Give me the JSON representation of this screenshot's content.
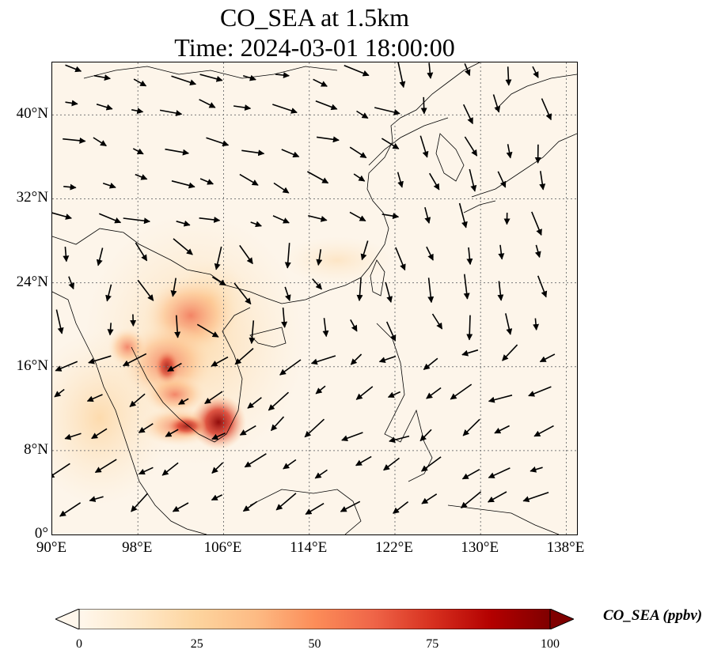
{
  "title": {
    "line1": "CO_SEA at 1.5km",
    "line2": "Time: 2024-03-01 18:00:00"
  },
  "map": {
    "projection": "PlateCarree",
    "lon_range": [
      90,
      139
    ],
    "lat_range": [
      0,
      45
    ],
    "gridlines": "dotted",
    "lat_ticks": [
      {
        "value": 0,
        "label": "0°"
      },
      {
        "value": 8,
        "label": "8°N"
      },
      {
        "value": 16,
        "label": "16°N"
      },
      {
        "value": 24,
        "label": "24°N"
      },
      {
        "value": 32,
        "label": "32°N"
      },
      {
        "value": 40,
        "label": "40°N"
      }
    ],
    "lon_ticks": [
      {
        "value": 90,
        "label": "90°E"
      },
      {
        "value": 98,
        "label": "98°E"
      },
      {
        "value": 106,
        "label": "106°E"
      },
      {
        "value": 114,
        "label": "114°E"
      },
      {
        "value": 122,
        "label": "122°E"
      },
      {
        "value": 130,
        "label": "130°E"
      },
      {
        "value": 138,
        "label": "138°E"
      }
    ],
    "field": "CO_SEA",
    "wind_vectors": "shown"
  },
  "colorbar": {
    "label": "CO_SEA (ppbv)",
    "cmap": "OrRd",
    "min": 0,
    "max": 100,
    "extend": "both",
    "ticks": [
      {
        "value": 0,
        "label": "0"
      },
      {
        "value": 25,
        "label": "25"
      },
      {
        "value": 50,
        "label": "50"
      },
      {
        "value": 75,
        "label": "75"
      },
      {
        "value": 100,
        "label": "100"
      }
    ],
    "colors": [
      "#fff7ec",
      "#fee8c8",
      "#fdd49e",
      "#fdbb84",
      "#fc8d59",
      "#ef6548",
      "#d7301f",
      "#b30000",
      "#7f0000"
    ]
  }
}
